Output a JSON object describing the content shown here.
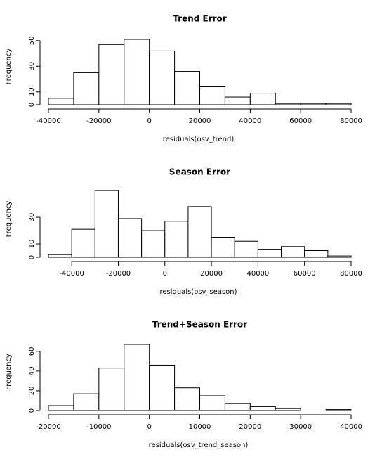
{
  "chart_data": [
    {
      "type": "histogram",
      "title": "Trend Error",
      "xlabel": "residuals(osv_trend)",
      "ylabel": "Frequency",
      "bins": [
        -40000,
        -30000,
        -20000,
        -10000,
        0,
        10000,
        20000,
        30000,
        40000,
        50000,
        60000,
        70000,
        80000
      ],
      "values": [
        5,
        25,
        47,
        51,
        42,
        26,
        14,
        6,
        9,
        1,
        1,
        1
      ],
      "xlim": [
        -40000,
        80000
      ],
      "xticks": [
        -40000,
        -20000,
        0,
        20000,
        40000,
        60000,
        80000
      ],
      "ylim": [
        0,
        51
      ],
      "yticks": [
        0,
        10,
        30,
        50
      ],
      "color": "#ffffff"
    },
    {
      "type": "histogram",
      "title": "Season Error",
      "xlabel": "residuals(osv_season)",
      "ylabel": "Frequency",
      "bins": [
        -50000,
        -40000,
        -30000,
        -20000,
        -10000,
        0,
        10000,
        20000,
        30000,
        40000,
        50000,
        60000,
        70000,
        80000
      ],
      "values": [
        2,
        21,
        50,
        29,
        20,
        27,
        38,
        15,
        12,
        6,
        8,
        5,
        1
      ],
      "xlim": [
        -50000,
        80000
      ],
      "xticks": [
        -40000,
        -20000,
        0,
        20000,
        40000,
        60000,
        80000
      ],
      "ylim": [
        0,
        49
      ],
      "yticks": [
        0,
        10,
        30
      ],
      "color": "#ffffff"
    },
    {
      "type": "histogram",
      "title": "Trend+Season Error",
      "xlabel": "residuals(osv_trend_season)",
      "ylabel": "Frequency",
      "bins": [
        -20000,
        -15000,
        -10000,
        -5000,
        0,
        5000,
        10000,
        15000,
        20000,
        25000,
        30000,
        35000,
        40000
      ],
      "values": [
        5,
        17,
        43,
        67,
        46,
        23,
        15,
        7,
        4,
        2,
        0,
        1
      ],
      "xlim": [
        -20000,
        40000
      ],
      "xticks": [
        -20000,
        -10000,
        0,
        10000,
        20000,
        30000,
        40000
      ],
      "ylim": [
        0,
        67
      ],
      "yticks": [
        0,
        20,
        40,
        60
      ],
      "color": "#ffffff"
    }
  ]
}
